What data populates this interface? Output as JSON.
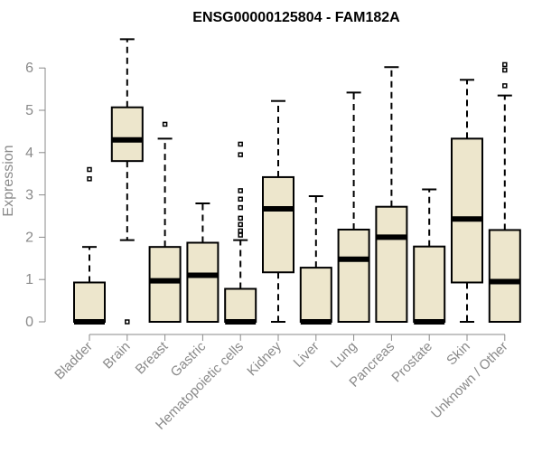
{
  "chart_data": {
    "type": "boxplot",
    "title": "ENSG00000125804 - FAM182A",
    "xlabel": "",
    "ylabel": "Expression",
    "ylim": [
      0,
      6.5
    ],
    "yticks": [
      0,
      1,
      2,
      3,
      4,
      5,
      6
    ],
    "box_color": "#ede6cc",
    "categories": [
      "Bladder",
      "Brain",
      "Breast",
      "Gastric",
      "Hematopoietic cells",
      "Kidney",
      "Liver",
      "Lung",
      "Pancreas",
      "Prostate",
      "Skin",
      "Unknown / Other"
    ],
    "boxes": [
      {
        "name": "Bladder",
        "min": 0,
        "q1": 0,
        "median": 0,
        "q3": 0.93,
        "max": 1.77,
        "outliers": [
          3.38,
          3.6
        ]
      },
      {
        "name": "Brain",
        "min": 1.93,
        "q1": 3.8,
        "median": 4.3,
        "q3": 5.07,
        "max": 6.68,
        "outliers": [
          0
        ]
      },
      {
        "name": "Breast",
        "min": 0,
        "q1": 0,
        "median": 0.97,
        "q3": 1.77,
        "max": 4.33,
        "outliers": [
          4.67
        ]
      },
      {
        "name": "Gastric",
        "min": 0,
        "q1": 0,
        "median": 1.1,
        "q3": 1.87,
        "max": 2.8,
        "outliers": []
      },
      {
        "name": "Hematopoietic cells",
        "min": 0,
        "q1": 0,
        "median": 0,
        "q3": 0.78,
        "max": 1.93,
        "outliers": [
          2.05,
          2.15,
          2.3,
          2.45,
          2.7,
          2.9,
          3.1,
          3.95,
          4.2
        ]
      },
      {
        "name": "Kidney",
        "min": 0,
        "q1": 1.17,
        "median": 2.67,
        "q3": 3.42,
        "max": 5.22,
        "outliers": []
      },
      {
        "name": "Liver",
        "min": 0,
        "q1": 0,
        "median": 0,
        "q3": 1.28,
        "max": 2.97,
        "outliers": []
      },
      {
        "name": "Lung",
        "min": 0,
        "q1": 0,
        "median": 1.48,
        "q3": 2.18,
        "max": 5.42,
        "outliers": []
      },
      {
        "name": "Pancreas",
        "min": 0,
        "q1": 0,
        "median": 2.0,
        "q3": 2.72,
        "max": 6.02,
        "outliers": []
      },
      {
        "name": "Prostate",
        "min": 0,
        "q1": 0,
        "median": 0,
        "q3": 1.78,
        "max": 3.13,
        "outliers": []
      },
      {
        "name": "Skin",
        "min": 0,
        "q1": 0.93,
        "median": 2.43,
        "q3": 4.33,
        "max": 5.72,
        "outliers": []
      },
      {
        "name": "Unknown / Other",
        "min": 0,
        "q1": 0,
        "median": 0.95,
        "q3": 2.17,
        "max": 5.35,
        "outliers": [
          5.58,
          5.95,
          6.08
        ]
      }
    ]
  }
}
